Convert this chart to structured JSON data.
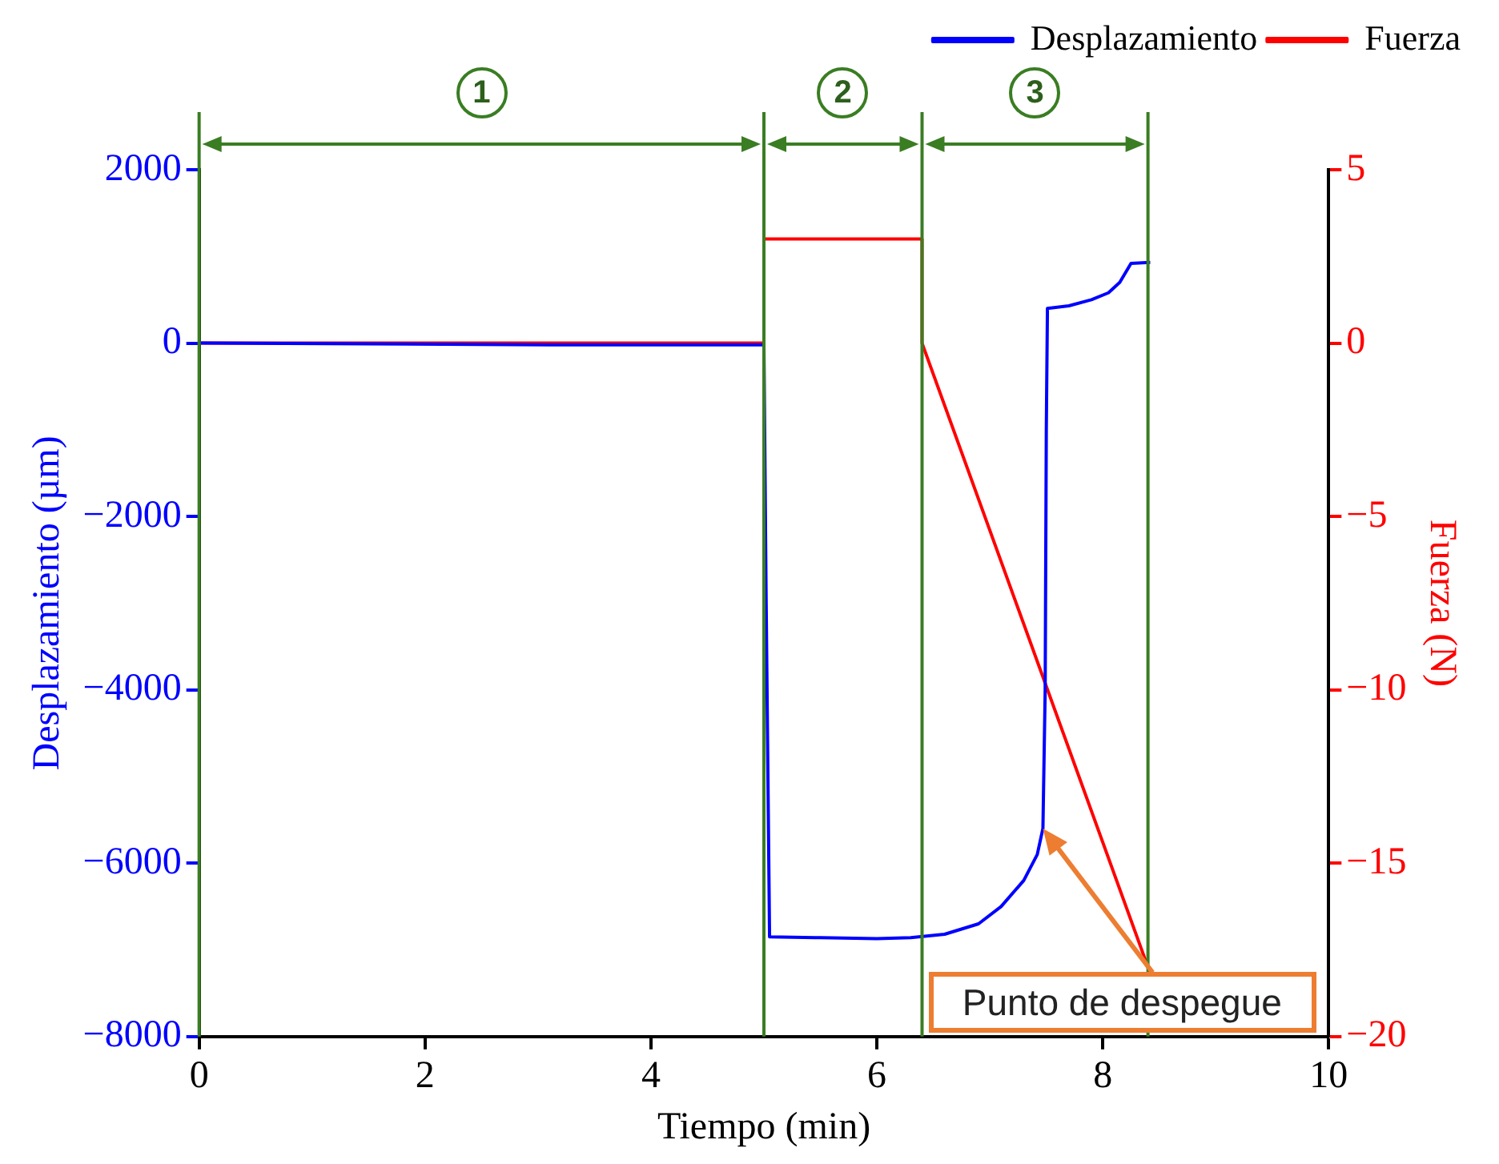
{
  "chart_data": {
    "type": "line",
    "xlabel": "Tiempo (min)",
    "ylabel": "Desplazamiento (µm)",
    "y2label": "Fuerza (N)",
    "legend": "top right",
    "xlim": [
      0,
      10
    ],
    "xticks": [
      0,
      2,
      4,
      6,
      8,
      10
    ],
    "ylim": [
      -8000,
      2000
    ],
    "yticks": [
      -8000,
      -6000,
      -4000,
      -2000,
      0,
      2000
    ],
    "y2lim": [
      -20,
      5
    ],
    "y2ticks": [
      -20,
      -15,
      -10,
      -5,
      0,
      5
    ],
    "series": [
      {
        "name": "Desplazamiento",
        "color": "#0000ff",
        "x": [
          0,
          3.1,
          5.0,
          5.02,
          5.05,
          5.5,
          6.0,
          6.3,
          6.6,
          6.9,
          7.1,
          7.3,
          7.42,
          7.47,
          7.49,
          7.5,
          7.51,
          7.7,
          7.9,
          8.05,
          8.15,
          8.25,
          8.42
        ],
        "values": [
          0,
          -20,
          -20,
          -3000,
          -6850,
          -6860,
          -6870,
          -6860,
          -6820,
          -6700,
          -6500,
          -6200,
          -5900,
          -5600,
          -4000,
          -1000,
          400,
          430,
          500,
          580,
          700,
          920,
          930
        ]
      },
      {
        "name": "Fuerza",
        "color": "#ff0000",
        "axis": "y2",
        "x": [
          0,
          5.0,
          5.0,
          6.4,
          6.4,
          8.4
        ],
        "values": [
          0,
          0,
          3,
          3,
          0,
          -18
        ]
      }
    ],
    "ref_lines": [
      {
        "axis": "x",
        "value": 0,
        "color": "#3a7d23"
      },
      {
        "axis": "x",
        "value": 5,
        "color": "#3a7d23"
      },
      {
        "axis": "x",
        "value": 6.4,
        "color": "#3a7d23"
      },
      {
        "axis": "x",
        "value": 8.4,
        "color": "#3a7d23"
      }
    ],
    "annotations": [
      "1",
      "2",
      "3",
      "Punto de despegue"
    ]
  }
}
